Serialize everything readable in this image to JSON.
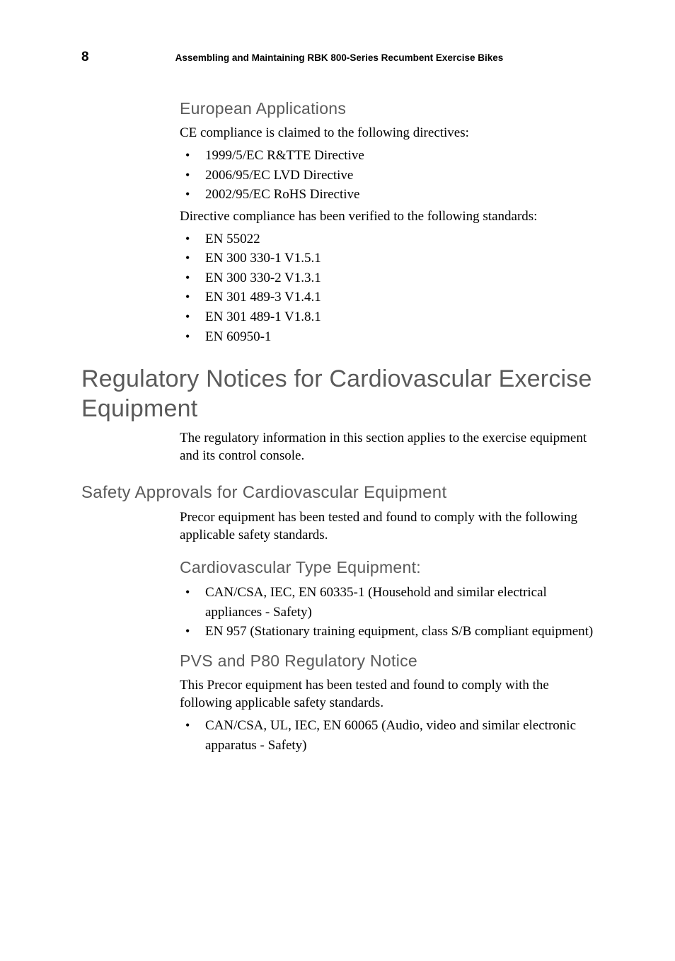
{
  "header": {
    "page_number": "8",
    "running_title": "Assembling and Maintaining RBK 800-Series Recumbent Exercise Bikes"
  },
  "sections": {
    "european": {
      "title": "European Applications",
      "intro": "CE compliance is claimed to the following directives:",
      "directives": [
        "1999/5/EC R&TTE Directive",
        "2006/95/EC LVD Directive",
        "2002/95/EC RoHS Directive"
      ],
      "standards_intro": "Directive compliance has been verified to the following standards:",
      "standards": [
        "EN 55022",
        "EN 300 330-1 V1.5.1",
        "EN 300 330-2 V1.3.1",
        "EN 301 489-3 V1.4.1",
        "EN 301 489-1 V1.8.1",
        "EN 60950-1"
      ]
    },
    "regulatory": {
      "title": "Regulatory Notices for Cardiovascular Exercise Equipment",
      "intro": "The regulatory information in this section applies to the exercise equipment and its control console."
    },
    "safety_approvals": {
      "title": "Safety Approvals for Cardiovascular Equipment",
      "intro": "Precor equipment has been tested and found to comply with the following applicable safety standards."
    },
    "cardio_type": {
      "title": "Cardiovascular Type Equipment:",
      "items": [
        "CAN/CSA, IEC, EN 60335-1 (Household and similar electrical appliances - Safety)",
        "EN 957 (Stationary training equipment, class S/B compliant equipment)"
      ]
    },
    "pvs": {
      "title": "PVS and P80 Regulatory Notice",
      "intro": "This Precor equipment has been tested and found to comply with the following applicable safety standards.",
      "items": [
        "CAN/CSA, UL, IEC, EN 60065 (Audio, video and similar electronic apparatus - Safety)"
      ]
    }
  }
}
